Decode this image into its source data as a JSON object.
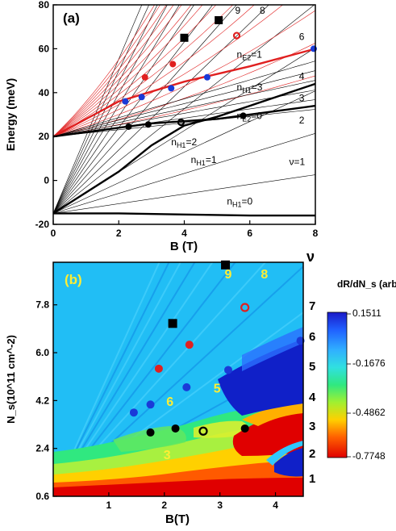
{
  "chart_data": [
    {
      "type": "line",
      "panel_label": "(a)",
      "xlabel": "B (T)",
      "ylabel": "Energy (meV)",
      "xlim": [
        0,
        8
      ],
      "ylim": [
        -20,
        80
      ],
      "xticks": [
        "0",
        "2",
        "4",
        "6",
        "8"
      ],
      "yticks": [
        "-20",
        "0",
        "20",
        "40",
        "60",
        "80"
      ],
      "annotations": [
        {
          "text": "9",
          "x": 5.55,
          "y": 76
        },
        {
          "text": "8",
          "x": 6.3,
          "y": 76
        },
        {
          "text": "6",
          "x": 7.5,
          "y": 64
        },
        {
          "text": "4",
          "x": 7.5,
          "y": 46
        },
        {
          "text": "3",
          "x": 7.5,
          "y": 36
        },
        {
          "text": "2",
          "x": 7.5,
          "y": 26
        },
        {
          "text": "ν=1",
          "x": 7.2,
          "y": 7
        },
        {
          "text": "n_E2=1",
          "x": 5.6,
          "y": 56
        },
        {
          "text": "n_H1=3",
          "x": 5.6,
          "y": 41
        },
        {
          "text": "n_E2=0",
          "x": 5.6,
          "y": 28
        },
        {
          "text": "n_H1=2",
          "x": 3.6,
          "y": 16
        },
        {
          "text": "n_H1=1",
          "x": 4.2,
          "y": 8
        },
        {
          "text": "n_H1=0",
          "x": 5.3,
          "y": -11
        }
      ],
      "series": [
        {
          "name": "n_E2=1",
          "color": "#e02020",
          "x": [
            0,
            2,
            4,
            6,
            8
          ],
          "y": [
            20,
            36,
            45,
            52,
            60
          ]
        },
        {
          "name": "n_E2=0",
          "color": "#000000",
          "x": [
            0,
            2,
            3,
            4,
            5,
            6,
            8
          ],
          "y": [
            20,
            24,
            26,
            27,
            28,
            30,
            34
          ]
        },
        {
          "name": "n_H1=2",
          "color": "#000000",
          "x": [
            0,
            2,
            3,
            4,
            5,
            6,
            8
          ],
          "y": [
            -15,
            4,
            16,
            25,
            29,
            34,
            44
          ]
        },
        {
          "name": "n_H1=0",
          "color": "#000000",
          "x": [
            0,
            2,
            4,
            6,
            8
          ],
          "y": [
            -15,
            -15,
            -15.5,
            -16,
            -16
          ]
        }
      ],
      "points": [
        {
          "x": 2.2,
          "y": 36,
          "color": "#1a3ad8",
          "marker": "circle"
        },
        {
          "x": 2.7,
          "y": 38,
          "color": "#1a3ad8",
          "marker": "circle"
        },
        {
          "x": 3.6,
          "y": 42,
          "color": "#1a3ad8",
          "marker": "circle"
        },
        {
          "x": 4.7,
          "y": 47,
          "color": "#1a3ad8",
          "marker": "circle"
        },
        {
          "x": 7.95,
          "y": 60,
          "color": "#1a3ad8",
          "marker": "circle"
        },
        {
          "x": 2.8,
          "y": 47,
          "color": "#e02020",
          "marker": "circle"
        },
        {
          "x": 3.65,
          "y": 53,
          "color": "#e02020",
          "marker": "circle"
        },
        {
          "x": 5.6,
          "y": 66,
          "color": "#e02020",
          "marker": "open-circle"
        },
        {
          "x": 4.0,
          "y": 65,
          "color": "#000000",
          "marker": "square"
        },
        {
          "x": 5.05,
          "y": 73,
          "color": "#000000",
          "marker": "square"
        },
        {
          "x": 2.3,
          "y": 24.5,
          "color": "#000000",
          "marker": "circle"
        },
        {
          "x": 2.9,
          "y": 25.5,
          "color": "#000000",
          "marker": "circle"
        },
        {
          "x": 3.9,
          "y": 26.5,
          "color": "#000000",
          "marker": "open-circle"
        },
        {
          "x": 5.8,
          "y": 29.5,
          "color": "#000000",
          "marker": "circle"
        }
      ]
    },
    {
      "type": "heatmap",
      "panel_label": "(b)",
      "xlabel": "B(T)",
      "ylabel": "N_s(10^11 cm^-2)",
      "xlim": [
        0,
        4.5
      ],
      "ylim": [
        0.6,
        9.4
      ],
      "xticks": [
        "1",
        "2",
        "3",
        "4"
      ],
      "yticks": [
        "0.6",
        "2.4",
        "4.2",
        "6.0",
        "7.8"
      ],
      "right_axis_label": "ν",
      "right_ticks": [
        "1",
        "2",
        "3",
        "4",
        "5",
        "6",
        "7"
      ],
      "colorbar": {
        "label": "dR/dN_s (arb.units)",
        "ticks": [
          "0.1511",
          "-0.1676",
          "-0.4862",
          "-0.7748"
        ],
        "colors": [
          "#1a1ac8",
          "#2080ff",
          "#30d0ff",
          "#30e880",
          "#d0ff30",
          "#ffc000",
          "#ff4000",
          "#e00000"
        ]
      },
      "annotations": [
        {
          "text": "9",
          "x": 3.15,
          "y": 8.8,
          "color": "#ffee33"
        },
        {
          "text": "8",
          "x": 3.8,
          "y": 8.8,
          "color": "#ffee33"
        },
        {
          "text": "6",
          "x": 2.1,
          "y": 4.0,
          "color": "#ffee33"
        },
        {
          "text": "5",
          "x": 2.95,
          "y": 4.5,
          "color": "#ffee33"
        },
        {
          "text": "3",
          "x": 2.05,
          "y": 2.0,
          "color": "#ffee33"
        }
      ],
      "points": [
        {
          "x": 3.1,
          "y": 9.3,
          "color": "#000000",
          "marker": "square"
        },
        {
          "x": 2.15,
          "y": 7.1,
          "color": "#000000",
          "marker": "square"
        },
        {
          "x": 3.45,
          "y": 7.7,
          "color": "#e02020",
          "marker": "open-circle"
        },
        {
          "x": 2.45,
          "y": 6.3,
          "color": "#e02020",
          "marker": "circle"
        },
        {
          "x": 1.9,
          "y": 5.4,
          "color": "#e02020",
          "marker": "circle"
        },
        {
          "x": 4.45,
          "y": 6.45,
          "color": "#1a3ad8",
          "marker": "circle"
        },
        {
          "x": 3.15,
          "y": 5.35,
          "color": "#1a3ad8",
          "marker": "circle"
        },
        {
          "x": 2.4,
          "y": 4.7,
          "color": "#1a3ad8",
          "marker": "circle"
        },
        {
          "x": 1.75,
          "y": 4.05,
          "color": "#1a3ad8",
          "marker": "circle"
        },
        {
          "x": 1.45,
          "y": 3.75,
          "color": "#1a3ad8",
          "marker": "circle"
        },
        {
          "x": 1.75,
          "y": 3.0,
          "color": "#000000",
          "marker": "circle"
        },
        {
          "x": 2.2,
          "y": 3.15,
          "color": "#000000",
          "marker": "circle"
        },
        {
          "x": 2.7,
          "y": 3.05,
          "color": "#000000",
          "marker": "open-circle"
        },
        {
          "x": 3.45,
          "y": 3.15,
          "color": "#000000",
          "marker": "circle"
        }
      ]
    }
  ]
}
